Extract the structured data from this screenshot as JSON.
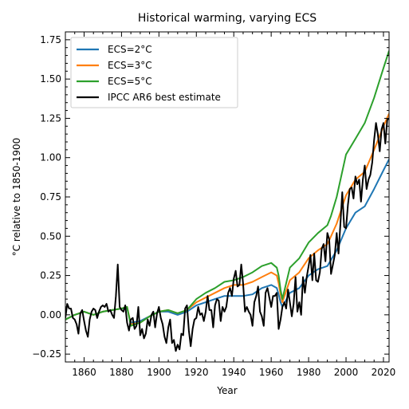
{
  "chart_data": {
    "type": "line",
    "title": "Historical warming, varying ECS",
    "xlabel": "Year",
    "ylabel": "°C relative to 1850-1900",
    "xlim": [
      1850,
      2023
    ],
    "ylim": [
      -0.3,
      1.8
    ],
    "xticks": [
      1860,
      1880,
      1900,
      1920,
      1940,
      1960,
      1980,
      2000,
      2020
    ],
    "yticks": [
      -0.25,
      0.0,
      0.25,
      0.5,
      0.75,
      1.0,
      1.25,
      1.5,
      1.75
    ],
    "ytick_labels": [
      "−0.25",
      "0.00",
      "0.25",
      "0.50",
      "0.75",
      "1.00",
      "1.25",
      "1.50",
      "1.75"
    ],
    "legend_position": "top-left",
    "grid": false,
    "series": [
      {
        "name": "ECS=2°C",
        "color": "#1f77b4",
        "points": [
          [
            1850,
            -0.03
          ],
          [
            1855,
            0.0
          ],
          [
            1860,
            0.02
          ],
          [
            1865,
            0.0
          ],
          [
            1870,
            0.02
          ],
          [
            1875,
            0.03
          ],
          [
            1880,
            0.04
          ],
          [
            1883,
            0.04
          ],
          [
            1885,
            -0.05
          ],
          [
            1890,
            -0.04
          ],
          [
            1895,
            -0.01
          ],
          [
            1900,
            0.02
          ],
          [
            1905,
            0.02
          ],
          [
            1910,
            0.0
          ],
          [
            1915,
            0.02
          ],
          [
            1920,
            0.06
          ],
          [
            1925,
            0.08
          ],
          [
            1930,
            0.1
          ],
          [
            1935,
            0.12
          ],
          [
            1940,
            0.12
          ],
          [
            1945,
            0.12
          ],
          [
            1950,
            0.13
          ],
          [
            1955,
            0.17
          ],
          [
            1960,
            0.19
          ],
          [
            1963,
            0.17
          ],
          [
            1964,
            0.13
          ],
          [
            1965,
            0.08
          ],
          [
            1966,
            0.05
          ],
          [
            1970,
            0.14
          ],
          [
            1975,
            0.17
          ],
          [
            1980,
            0.25
          ],
          [
            1985,
            0.29
          ],
          [
            1990,
            0.31
          ],
          [
            1992,
            0.35
          ],
          [
            1995,
            0.41
          ],
          [
            2000,
            0.55
          ],
          [
            2005,
            0.65
          ],
          [
            2010,
            0.69
          ],
          [
            2015,
            0.8
          ],
          [
            2020,
            0.92
          ],
          [
            2023,
            0.99
          ]
        ]
      },
      {
        "name": "ECS=3°C",
        "color": "#ff7f0e",
        "points": [
          [
            1850,
            -0.03
          ],
          [
            1855,
            0.0
          ],
          [
            1860,
            0.02
          ],
          [
            1865,
            0.0
          ],
          [
            1870,
            0.02
          ],
          [
            1875,
            0.03
          ],
          [
            1880,
            0.04
          ],
          [
            1883,
            0.05
          ],
          [
            1885,
            -0.06
          ],
          [
            1890,
            -0.05
          ],
          [
            1895,
            -0.01
          ],
          [
            1900,
            0.02
          ],
          [
            1905,
            0.03
          ],
          [
            1910,
            0.01
          ],
          [
            1915,
            0.03
          ],
          [
            1920,
            0.08
          ],
          [
            1925,
            0.11
          ],
          [
            1930,
            0.14
          ],
          [
            1935,
            0.17
          ],
          [
            1940,
            0.19
          ],
          [
            1945,
            0.19
          ],
          [
            1950,
            0.21
          ],
          [
            1955,
            0.24
          ],
          [
            1960,
            0.27
          ],
          [
            1963,
            0.25
          ],
          [
            1964,
            0.2
          ],
          [
            1965,
            0.13
          ],
          [
            1966,
            0.08
          ],
          [
            1970,
            0.22
          ],
          [
            1975,
            0.27
          ],
          [
            1980,
            0.36
          ],
          [
            1985,
            0.41
          ],
          [
            1990,
            0.45
          ],
          [
            1992,
            0.5
          ],
          [
            1995,
            0.58
          ],
          [
            2000,
            0.76
          ],
          [
            2005,
            0.86
          ],
          [
            2010,
            0.91
          ],
          [
            2015,
            1.05
          ],
          [
            2020,
            1.2
          ],
          [
            2023,
            1.28
          ]
        ]
      },
      {
        "name": "ECS=5°C",
        "color": "#2ca02c",
        "points": [
          [
            1850,
            -0.03
          ],
          [
            1855,
            0.0
          ],
          [
            1860,
            0.02
          ],
          [
            1865,
            0.0
          ],
          [
            1870,
            0.02
          ],
          [
            1875,
            0.03
          ],
          [
            1880,
            0.04
          ],
          [
            1883,
            0.05
          ],
          [
            1885,
            -0.07
          ],
          [
            1890,
            -0.05
          ],
          [
            1895,
            -0.01
          ],
          [
            1900,
            0.02
          ],
          [
            1905,
            0.03
          ],
          [
            1910,
            0.01
          ],
          [
            1915,
            0.03
          ],
          [
            1920,
            0.1
          ],
          [
            1925,
            0.14
          ],
          [
            1930,
            0.17
          ],
          [
            1935,
            0.21
          ],
          [
            1940,
            0.22
          ],
          [
            1945,
            0.24
          ],
          [
            1950,
            0.27
          ],
          [
            1955,
            0.31
          ],
          [
            1960,
            0.33
          ],
          [
            1963,
            0.3
          ],
          [
            1964,
            0.25
          ],
          [
            1965,
            0.16
          ],
          [
            1966,
            0.1
          ],
          [
            1970,
            0.3
          ],
          [
            1975,
            0.36
          ],
          [
            1980,
            0.46
          ],
          [
            1985,
            0.52
          ],
          [
            1990,
            0.57
          ],
          [
            1992,
            0.63
          ],
          [
            1995,
            0.75
          ],
          [
            2000,
            1.02
          ],
          [
            2005,
            1.12
          ],
          [
            2010,
            1.22
          ],
          [
            2015,
            1.38
          ],
          [
            2020,
            1.57
          ],
          [
            2023,
            1.68
          ]
        ]
      },
      {
        "name": "IPCC AR6 best estimate",
        "color": "#000000",
        "points": [
          [
            1850,
            -0.02
          ],
          [
            1851,
            0.07
          ],
          [
            1852,
            0.04
          ],
          [
            1853,
            0.04
          ],
          [
            1854,
            -0.02
          ],
          [
            1855,
            -0.03
          ],
          [
            1856,
            -0.06
          ],
          [
            1857,
            -0.12
          ],
          [
            1858,
            0.01
          ],
          [
            1859,
            0.03
          ],
          [
            1860,
            -0.04
          ],
          [
            1861,
            -0.1
          ],
          [
            1862,
            -0.14
          ],
          [
            1863,
            -0.03
          ],
          [
            1864,
            0.02
          ],
          [
            1865,
            0.04
          ],
          [
            1866,
            0.03
          ],
          [
            1867,
            -0.02
          ],
          [
            1868,
            0.02
          ],
          [
            1869,
            0.05
          ],
          [
            1870,
            0.06
          ],
          [
            1871,
            0.05
          ],
          [
            1872,
            0.07
          ],
          [
            1873,
            0.02
          ],
          [
            1874,
            0.03
          ],
          [
            1875,
            0.0
          ],
          [
            1876,
            -0.02
          ],
          [
            1877,
            0.12
          ],
          [
            1878,
            0.32
          ],
          [
            1879,
            0.05
          ],
          [
            1880,
            0.03
          ],
          [
            1881,
            0.02
          ],
          [
            1882,
            0.06
          ],
          [
            1883,
            -0.05
          ],
          [
            1884,
            -0.1
          ],
          [
            1885,
            -0.03
          ],
          [
            1886,
            -0.02
          ],
          [
            1887,
            -0.09
          ],
          [
            1888,
            -0.07
          ],
          [
            1889,
            0.05
          ],
          [
            1890,
            -0.13
          ],
          [
            1891,
            -0.09
          ],
          [
            1892,
            -0.15
          ],
          [
            1893,
            -0.12
          ],
          [
            1894,
            -0.03
          ],
          [
            1895,
            -0.07
          ],
          [
            1896,
            0.0
          ],
          [
            1897,
            0.02
          ],
          [
            1898,
            -0.08
          ],
          [
            1899,
            0.01
          ],
          [
            1900,
            0.05
          ],
          [
            1901,
            -0.02
          ],
          [
            1902,
            -0.06
          ],
          [
            1903,
            -0.14
          ],
          [
            1904,
            -0.18
          ],
          [
            1905,
            -0.08
          ],
          [
            1906,
            -0.03
          ],
          [
            1907,
            -0.18
          ],
          [
            1908,
            -0.16
          ],
          [
            1909,
            -0.23
          ],
          [
            1910,
            -0.19
          ],
          [
            1911,
            -0.22
          ],
          [
            1912,
            -0.12
          ],
          [
            1913,
            -0.13
          ],
          [
            1914,
            0.04
          ],
          [
            1915,
            0.06
          ],
          [
            1916,
            -0.1
          ],
          [
            1917,
            -0.2
          ],
          [
            1918,
            -0.09
          ],
          [
            1919,
            -0.03
          ],
          [
            1920,
            -0.02
          ],
          [
            1921,
            0.05
          ],
          [
            1922,
            0.0
          ],
          [
            1923,
            0.01
          ],
          [
            1924,
            -0.04
          ],
          [
            1925,
            0.02
          ],
          [
            1926,
            0.12
          ],
          [
            1927,
            0.03
          ],
          [
            1928,
            0.03
          ],
          [
            1929,
            -0.08
          ],
          [
            1930,
            0.06
          ],
          [
            1931,
            0.1
          ],
          [
            1932,
            0.09
          ],
          [
            1933,
            -0.04
          ],
          [
            1934,
            0.05
          ],
          [
            1935,
            0.02
          ],
          [
            1936,
            0.05
          ],
          [
            1937,
            0.14
          ],
          [
            1938,
            0.17
          ],
          [
            1939,
            0.12
          ],
          [
            1940,
            0.23
          ],
          [
            1941,
            0.28
          ],
          [
            1942,
            0.18
          ],
          [
            1943,
            0.19
          ],
          [
            1944,
            0.32
          ],
          [
            1945,
            0.2
          ],
          [
            1946,
            0.02
          ],
          [
            1947,
            0.05
          ],
          [
            1948,
            0.02
          ],
          [
            1949,
            0.0
          ],
          [
            1950,
            -0.07
          ],
          [
            1951,
            0.08
          ],
          [
            1952,
            0.12
          ],
          [
            1953,
            0.18
          ],
          [
            1954,
            0.02
          ],
          [
            1955,
            -0.01
          ],
          [
            1956,
            -0.07
          ],
          [
            1957,
            0.14
          ],
          [
            1958,
            0.17
          ],
          [
            1959,
            0.11
          ],
          [
            1960,
            0.05
          ],
          [
            1961,
            0.12
          ],
          [
            1962,
            0.12
          ],
          [
            1963,
            0.14
          ],
          [
            1964,
            -0.09
          ],
          [
            1965,
            -0.03
          ],
          [
            1966,
            0.05
          ],
          [
            1967,
            0.08
          ],
          [
            1968,
            0.04
          ],
          [
            1969,
            0.16
          ],
          [
            1970,
            0.08
          ],
          [
            1971,
            -0.01
          ],
          [
            1972,
            0.07
          ],
          [
            1973,
            0.24
          ],
          [
            1974,
            0.02
          ],
          [
            1975,
            0.08
          ],
          [
            1976,
            0.0
          ],
          [
            1977,
            0.24
          ],
          [
            1978,
            0.14
          ],
          [
            1979,
            0.24
          ],
          [
            1980,
            0.31
          ],
          [
            1981,
            0.38
          ],
          [
            1982,
            0.22
          ],
          [
            1983,
            0.39
          ],
          [
            1984,
            0.22
          ],
          [
            1985,
            0.21
          ],
          [
            1986,
            0.27
          ],
          [
            1987,
            0.42
          ],
          [
            1988,
            0.45
          ],
          [
            1989,
            0.34
          ],
          [
            1990,
            0.52
          ],
          [
            1991,
            0.48
          ],
          [
            1992,
            0.26
          ],
          [
            1993,
            0.32
          ],
          [
            1994,
            0.38
          ],
          [
            1995,
            0.52
          ],
          [
            1996,
            0.39
          ],
          [
            1997,
            0.58
          ],
          [
            1998,
            0.78
          ],
          [
            1999,
            0.56
          ],
          [
            2000,
            0.55
          ],
          [
            2001,
            0.7
          ],
          [
            2002,
            0.8
          ],
          [
            2003,
            0.81
          ],
          [
            2004,
            0.74
          ],
          [
            2005,
            0.88
          ],
          [
            2006,
            0.83
          ],
          [
            2007,
            0.86
          ],
          [
            2008,
            0.72
          ],
          [
            2009,
            0.86
          ],
          [
            2010,
            0.95
          ],
          [
            2011,
            0.8
          ],
          [
            2012,
            0.86
          ],
          [
            2013,
            0.89
          ],
          [
            2014,
            0.97
          ],
          [
            2015,
            1.11
          ],
          [
            2016,
            1.22
          ],
          [
            2017,
            1.15
          ],
          [
            2018,
            1.04
          ],
          [
            2019,
            1.18
          ],
          [
            2020,
            1.22
          ],
          [
            2021,
            1.09
          ],
          [
            2022,
            1.24
          ],
          [
            2023,
            1.25
          ]
        ]
      }
    ]
  }
}
